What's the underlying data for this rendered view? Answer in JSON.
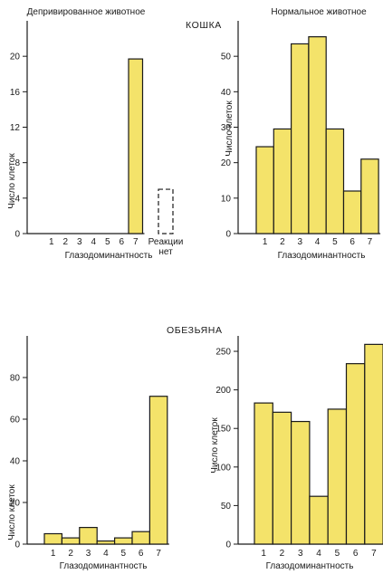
{
  "section_titles": {
    "cat": "КОШКА",
    "monkey": "ОБЕЗЬЯНА"
  },
  "colors": {
    "bar_fill": "#f4e36a",
    "bar_stroke": "#1a1a1a",
    "axis": "#1a1a1a"
  },
  "chart_data": [
    {
      "id": "cat_deprived",
      "type": "bar",
      "title": "Депривированное животное",
      "xlabel": "Глазодоминантность",
      "ylabel": "Число клеток",
      "categories": [
        "1",
        "2",
        "3",
        "4",
        "5",
        "6",
        "7"
      ],
      "values": [
        0,
        0,
        0,
        0,
        0,
        0,
        19.7
      ],
      "ylim": [
        0,
        24
      ],
      "yticks": [
        0,
        4,
        8,
        12,
        16,
        20
      ],
      "extra_bar": {
        "label_line1": "Реакции",
        "label_line2": "нет",
        "value": 5,
        "style": "dashed"
      }
    },
    {
      "id": "cat_normal",
      "type": "bar",
      "title": "Нормальное животное",
      "xlabel": "Глазодоминантность",
      "ylabel": "Число клеток",
      "categories": [
        "1",
        "2",
        "3",
        "4",
        "5",
        "6",
        "7"
      ],
      "values": [
        24.5,
        29.5,
        53.5,
        55.5,
        29.5,
        12,
        21
      ],
      "ylim": [
        0,
        60
      ],
      "yticks": [
        0,
        10,
        20,
        30,
        40,
        50
      ]
    },
    {
      "id": "monkey_deprived",
      "type": "bar",
      "title": "",
      "xlabel": "Глазодоминантность",
      "ylabel": "Число клеток",
      "categories": [
        "1",
        "2",
        "3",
        "4",
        "5",
        "6",
        "7"
      ],
      "values": [
        5,
        3,
        8,
        1.5,
        3,
        6,
        71
      ],
      "ylim": [
        0,
        100
      ],
      "yticks": [
        0,
        20,
        40,
        60,
        80
      ]
    },
    {
      "id": "monkey_normal",
      "type": "bar",
      "title": "",
      "xlabel": "Глазодоминантность",
      "ylabel": "Число клеток",
      "categories": [
        "1",
        "2",
        "3",
        "4",
        "5",
        "6",
        "7"
      ],
      "values": [
        183,
        171,
        159,
        62,
        175,
        234,
        259
      ],
      "ylim": [
        0,
        270
      ],
      "yticks": [
        0,
        50,
        100,
        150,
        200,
        250
      ]
    }
  ]
}
